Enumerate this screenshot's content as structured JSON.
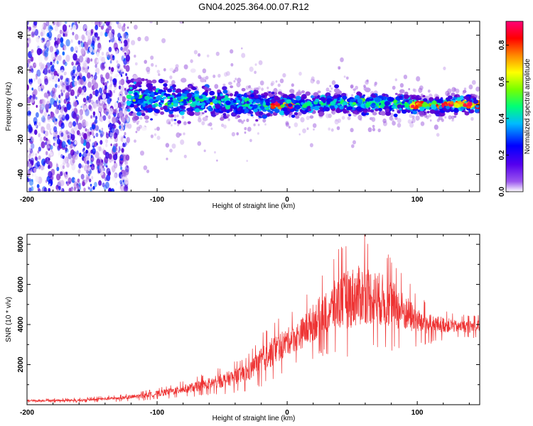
{
  "figure_title": "GN04.2025.364.00.07.R12",
  "chart_data": [
    {
      "type": "heatmap",
      "name": "spectrogram",
      "xlabel": "Height of straight line (km)",
      "ylabel": "Frequency (Hz)",
      "xlim": [
        -200,
        148
      ],
      "ylim": [
        -50,
        48
      ],
      "xticks": [
        -200,
        -100,
        0,
        100
      ],
      "yticks": [
        -40,
        -20,
        0,
        20,
        40
      ],
      "grid": false,
      "colorbar": {
        "label": "Normalized spectral amplitude",
        "range": [
          0.0,
          0.93
        ],
        "ticks": [
          "0.0",
          "0.2",
          "0.4",
          "0.6",
          "0.8"
        ],
        "colormap": [
          "#ffffff",
          "#6600cc",
          "#0000ff",
          "#00ccff",
          "#00ff66",
          "#66ff00",
          "#ffff00",
          "#ff8800",
          "#ff0000",
          "#ff0066"
        ]
      },
      "structure": [
        {
          "region": "scattered noise",
          "x_range": [
            -200,
            -122
          ],
          "freq_range": [
            -50,
            48
          ],
          "amplitude_range": [
            0.0,
            0.3
          ]
        },
        {
          "region": "signal band",
          "x_range": [
            -122,
            148
          ],
          "center_freq": [
            [
              -120,
              4
            ],
            [
              -60,
              2
            ],
            [
              -20,
              0
            ],
            [
              0,
              0
            ],
            [
              60,
              1
            ],
            [
              100,
              0
            ],
            [
              148,
              0
            ]
          ],
          "half_width_hz": [
            [
              -120,
              8
            ],
            [
              0,
              4
            ],
            [
              148,
              3
            ]
          ],
          "amplitude_range": [
            0.1,
            0.93
          ]
        }
      ]
    },
    {
      "type": "line",
      "name": "snr",
      "xlabel": "Height of straight line (km)",
      "ylabel": "SNR (10 * v/v)",
      "xlim": [
        -200,
        148
      ],
      "ylim": [
        0,
        8500
      ],
      "xticks": [
        -200,
        -100,
        0,
        100
      ],
      "yticks": [
        2000,
        4000,
        6000,
        8000
      ],
      "color": "#ee3333",
      "envelope": {
        "x": [
          -200,
          -160,
          -130,
          -110,
          -90,
          -70,
          -50,
          -30,
          -20,
          -10,
          0,
          10,
          20,
          30,
          40,
          50,
          60,
          70,
          80,
          90,
          100,
          110,
          120,
          130,
          148
        ],
        "lower": [
          100,
          100,
          150,
          200,
          300,
          400,
          500,
          700,
          900,
          1200,
          1800,
          2000,
          2200,
          2500,
          2400,
          2300,
          2500,
          2600,
          2600,
          2700,
          2900,
          3000,
          3200,
          3300,
          3300
        ],
        "upper": [
          300,
          350,
          500,
          700,
          1000,
          1400,
          1900,
          2500,
          3500,
          4200,
          4500,
          5000,
          6000,
          6800,
          7800,
          8400,
          8500,
          8000,
          7500,
          6500,
          5500,
          5000,
          4800,
          4500,
          4500
        ]
      }
    }
  ]
}
